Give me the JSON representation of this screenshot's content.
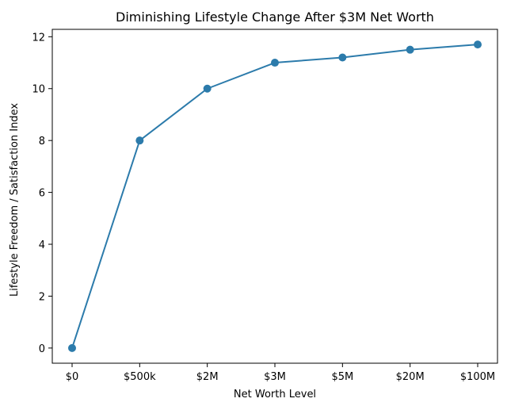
{
  "chart_data": {
    "type": "line",
    "title": "Diminishing Lifestyle Change After $3M Net Worth",
    "xlabel": "Net Worth Level",
    "ylabel": "Lifestyle Freedom / Satisfaction Index",
    "categories": [
      "$0",
      "$500k",
      "$2M",
      "$3M",
      "$5M",
      "$20M",
      "$100M"
    ],
    "series": [
      {
        "values": [
          0,
          8,
          10,
          11,
          11.2,
          11.5,
          11.7
        ],
        "color": "#2c7bab",
        "marker": "circle"
      }
    ],
    "ylim": [
      -0.585,
      12.285
    ],
    "yticks": [
      0,
      2,
      4,
      6,
      8,
      10,
      12
    ],
    "grid": false,
    "legend": false
  }
}
